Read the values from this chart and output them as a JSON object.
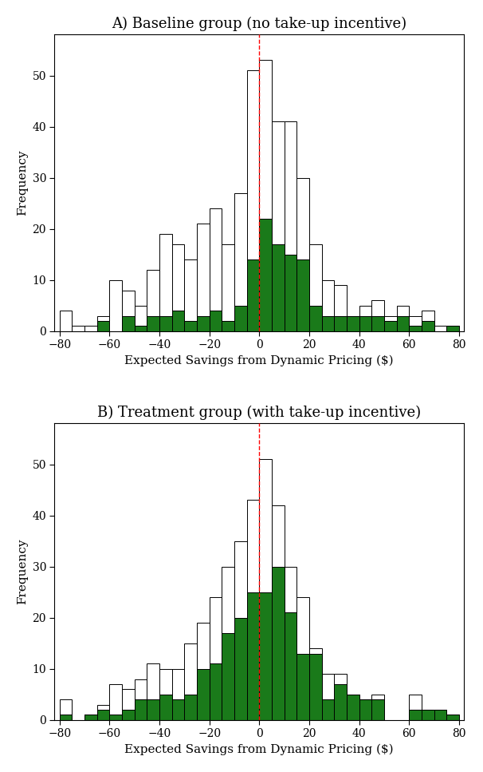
{
  "title_A": "A) Baseline group (no take-up incentive)",
  "title_B": "B) Treatment group (with take-up incentive)",
  "xlabel": "Expected Savings from Dynamic Pricing ($)",
  "ylabel": "Frequency",
  "bin_edges": [
    -80,
    -75,
    -70,
    -65,
    -60,
    -55,
    -50,
    -45,
    -40,
    -35,
    -30,
    -25,
    -20,
    -15,
    -10,
    -5,
    0,
    5,
    10,
    15,
    20,
    25,
    30,
    35,
    40,
    45,
    50,
    55,
    60,
    65,
    70,
    75
  ],
  "A_white": [
    4,
    1,
    1,
    3,
    10,
    8,
    5,
    12,
    19,
    17,
    14,
    21,
    24,
    17,
    27,
    51,
    53,
    41,
    41,
    30,
    17,
    10,
    9,
    3,
    5,
    6,
    3,
    5,
    3,
    4,
    1,
    1
  ],
  "A_green": [
    0,
    0,
    0,
    2,
    0,
    3,
    1,
    3,
    3,
    4,
    2,
    3,
    4,
    2,
    5,
    14,
    22,
    17,
    15,
    14,
    5,
    3,
    3,
    3,
    3,
    3,
    2,
    3,
    1,
    2,
    0,
    1
  ],
  "B_white": [
    4,
    0,
    1,
    3,
    7,
    6,
    8,
    11,
    10,
    10,
    15,
    19,
    24,
    30,
    35,
    43,
    51,
    42,
    30,
    24,
    14,
    9,
    9,
    5,
    4,
    5,
    0,
    0,
    5,
    2,
    2,
    1
  ],
  "B_green": [
    1,
    0,
    1,
    2,
    1,
    2,
    4,
    4,
    5,
    4,
    5,
    10,
    11,
    17,
    20,
    25,
    25,
    30,
    21,
    13,
    13,
    4,
    7,
    5,
    4,
    4,
    0,
    0,
    2,
    2,
    2,
    1
  ],
  "bar_color_green": "#1a7a1a",
  "bar_color_white": "#ffffff",
  "bar_edge_color": "#000000",
  "vline_color": "#ff0000",
  "vline_style": "--",
  "xlim": [
    -82,
    82
  ],
  "ylim_A": [
    0,
    56
  ],
  "ylim_B": [
    0,
    56
  ],
  "yticks": [
    0,
    10,
    20,
    30,
    40,
    50
  ],
  "xticks": [
    -80,
    -60,
    -40,
    -20,
    0,
    20,
    40,
    60,
    80
  ],
  "title_fontsize": 13,
  "label_fontsize": 11,
  "tick_fontsize": 10
}
